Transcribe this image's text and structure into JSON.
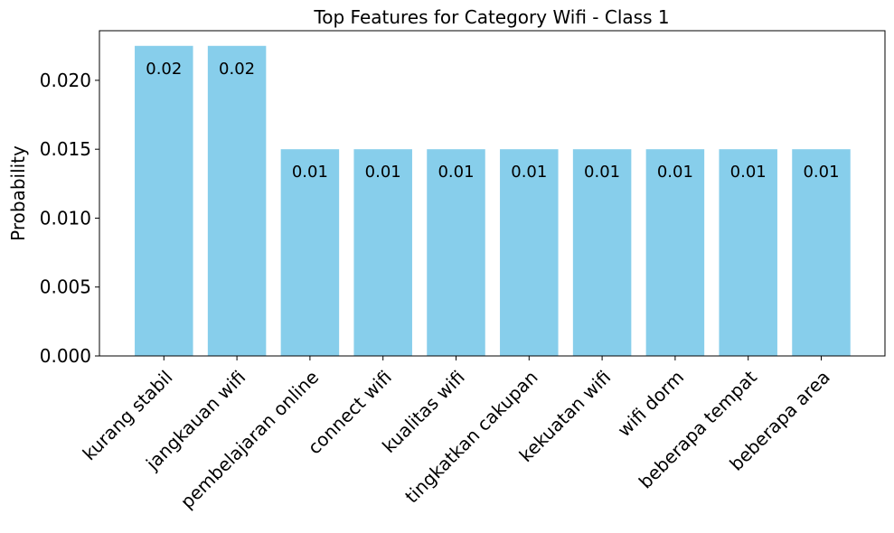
{
  "chart_data": {
    "type": "bar",
    "title": "Top Features for Category Wifi - Class 1",
    "xlabel": "",
    "ylabel": "Probability",
    "categories": [
      "kurang stabil",
      "jangkauan wifi",
      "pembelajaran online",
      "connect wifi",
      "kualitas wifi",
      "tingkatkan cakupan",
      "kekuatan wifi",
      "wifi dorm",
      "beberapa tempat",
      "beberapa area"
    ],
    "values": [
      0.0225,
      0.0225,
      0.015,
      0.015,
      0.015,
      0.015,
      0.015,
      0.015,
      0.015,
      0.015
    ],
    "data_labels": [
      "0.02",
      "0.02",
      "0.01",
      "0.01",
      "0.01",
      "0.01",
      "0.01",
      "0.01",
      "0.01",
      "0.01"
    ],
    "ylim": [
      0,
      0.0236
    ],
    "yticks": [
      0.0,
      0.005,
      0.01,
      0.015,
      0.02
    ],
    "ytick_labels": [
      "0.000",
      "0.005",
      "0.010",
      "0.015",
      "0.020"
    ],
    "grid": false,
    "bar_color": "#87ceeb",
    "xtick_rotation": 45
  }
}
